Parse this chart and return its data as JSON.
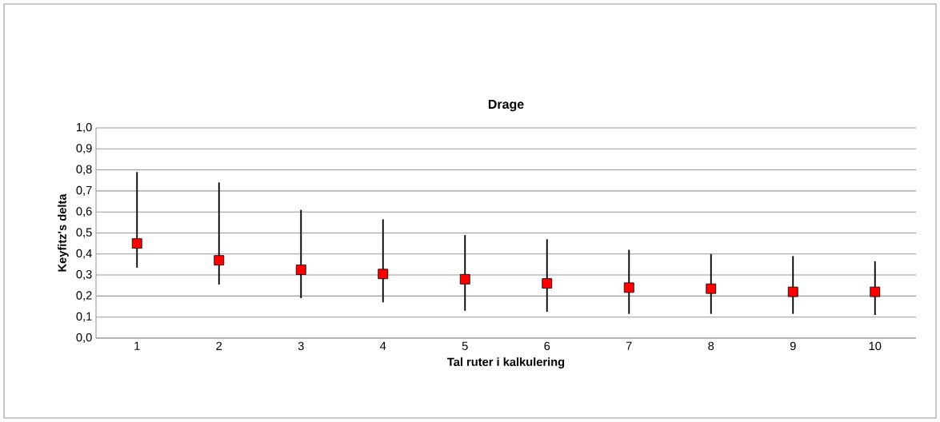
{
  "chart_data": {
    "type": "scatter",
    "title": "Drage",
    "xlabel": "Tal ruter i kalkulering",
    "ylabel": "Keyfitz's delta",
    "categories": [
      "1",
      "2",
      "3",
      "4",
      "5",
      "6",
      "7",
      "8",
      "9",
      "10"
    ],
    "series": [
      {
        "color": "#ff0000",
        "values": [
          0.45,
          0.37,
          0.325,
          0.305,
          0.28,
          0.26,
          0.24,
          0.235,
          0.22,
          0.22
        ],
        "errors": [
          [
            0.335,
            0.79
          ],
          [
            0.255,
            0.74
          ],
          [
            0.19,
            0.61
          ],
          [
            0.17,
            0.565
          ],
          [
            0.13,
            0.49
          ],
          [
            0.125,
            0.47
          ],
          [
            0.115,
            0.42
          ],
          [
            0.115,
            0.4
          ],
          [
            0.115,
            0.39
          ],
          [
            0.11,
            0.365
          ]
        ]
      }
    ],
    "ylim": [
      0,
      1
    ],
    "yticks": [
      {
        "value": 0,
        "label": "0,0"
      },
      {
        "value": 0.1,
        "label": "0,1"
      },
      {
        "value": 0.2,
        "label": "0,2"
      },
      {
        "value": 0.3,
        "label": "0,3"
      },
      {
        "value": 0.4,
        "label": "0,4"
      },
      {
        "value": 0.5,
        "label": "0,5"
      },
      {
        "value": 0.6,
        "label": "0,6"
      },
      {
        "value": 0.7,
        "label": "0,7"
      },
      {
        "value": 0.8,
        "label": "0,8"
      },
      {
        "value": 0.9,
        "label": "0,9"
      },
      {
        "value": 1,
        "label": "1,0"
      }
    ],
    "grid": "y",
    "marker": "square"
  }
}
